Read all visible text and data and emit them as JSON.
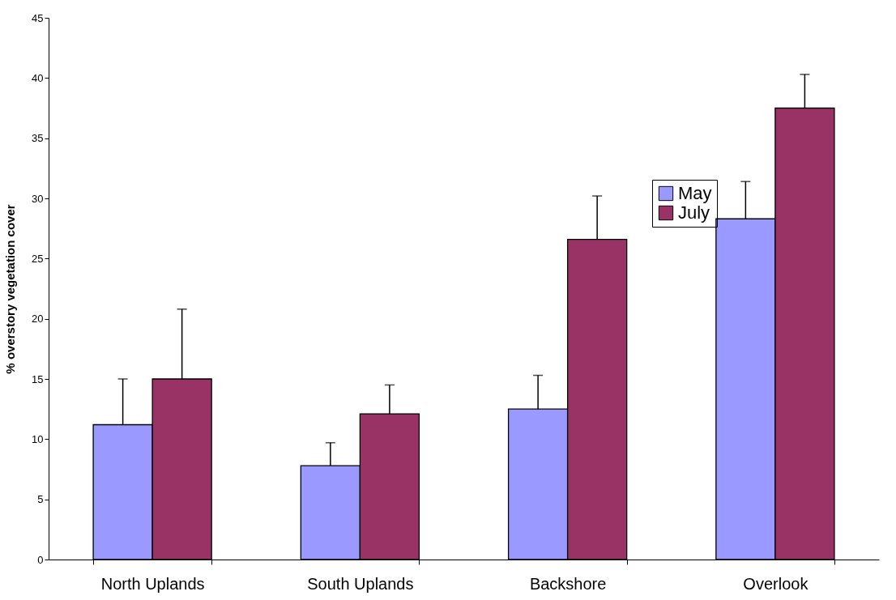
{
  "chart_data": {
    "type": "bar",
    "ylabel": "% overstory vegetation cover",
    "categories": [
      "North Uplands",
      "South Uplands",
      "Backshore",
      "Overlook"
    ],
    "series": [
      {
        "name": "May",
        "color": "#9999ff",
        "values": [
          11.2,
          7.8,
          12.5,
          28.3
        ],
        "errors": [
          [
            11.2,
            15.0
          ],
          [
            7.8,
            9.7
          ],
          [
            12.5,
            15.3
          ],
          [
            28.3,
            31.4
          ]
        ]
      },
      {
        "name": "July",
        "color": "#993366",
        "values": [
          15.0,
          12.1,
          26.6,
          37.5
        ],
        "errors": [
          [
            15.0,
            20.8
          ],
          [
            12.1,
            14.5
          ],
          [
            26.6,
            30.2
          ],
          [
            37.5,
            40.3
          ]
        ]
      }
    ],
    "ylim": [
      0,
      45
    ],
    "yticks": [
      0,
      5,
      10,
      15,
      20,
      25,
      30,
      35,
      40,
      45
    ],
    "grid": false,
    "legend": "top right"
  }
}
